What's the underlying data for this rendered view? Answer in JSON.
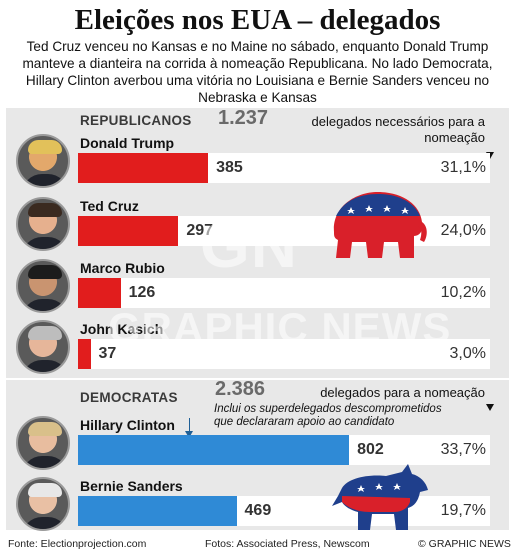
{
  "title": "Eleições nos EUA – delegados",
  "subtitle": "Ted Cruz venceu no Kansas e no Maine no sábado, enquanto Donald Trump manteve a dianteira na corrida à nomeação Republicana. No lado Democrata, Hillary Clinton averbou uma vitória no Louisiana e Bernie Sanders venceu no Nebraska e Kansas",
  "republican": {
    "label": "REPUBLICANOS",
    "threshold_value": "1.237",
    "threshold_text": "delegados necessários para a nomeação",
    "candidates": [
      {
        "name": "Donald Trump",
        "delegates": 385,
        "delegates_label": "385",
        "pct": "31,1%"
      },
      {
        "name": "Ted Cruz",
        "delegates": 297,
        "delegates_label": "297",
        "pct": "24,0%"
      },
      {
        "name": "Marco Rubio",
        "delegates": 126,
        "delegates_label": "126",
        "pct": "10,2%"
      },
      {
        "name": "John Kasich",
        "delegates": 37,
        "delegates_label": "37",
        "pct": "3,0%"
      }
    ]
  },
  "democrat": {
    "label": "DEMOCRATAS",
    "threshold_value": "2.386",
    "threshold_text": "delegados para a nomeação",
    "note": "Inclui os superdelegados descomprometidos que declararam apoio ao candidato",
    "candidates": [
      {
        "name": "Hillary Clinton",
        "delegates": 802,
        "delegates_label": "802",
        "pct": "33,7%"
      },
      {
        "name": "Bernie Sanders",
        "delegates": 469,
        "delegates_label": "469",
        "pct": "19,7%"
      }
    ]
  },
  "watermark": {
    "logo": "GN",
    "text": "GRAPHIC NEWS"
  },
  "footer": {
    "source": "Fonte: Electionprojection.com",
    "photos": "Fotos: Associated Press, Newscom",
    "credit": "© GRAPHIC NEWS"
  },
  "colors": {
    "republican": "#e11d1d",
    "democrat": "#2f8ad6",
    "panel": "#e8e8e8"
  },
  "icons": {
    "republican": "elephant-icon",
    "democrat": "donkey-icon"
  },
  "chart_data": [
    {
      "type": "bar",
      "categories": [
        "Donald Trump",
        "Ted Cruz",
        "Marco Rubio",
        "John Kasich"
      ],
      "values": [
        385,
        297,
        126,
        37
      ],
      "percent_labels": [
        "31,1%",
        "24,0%",
        "10,2%",
        "3,0%"
      ],
      "threshold": 1237,
      "orientation": "horizontal"
    },
    {
      "type": "bar",
      "categories": [
        "Hillary Clinton",
        "Bernie Sanders"
      ],
      "values": [
        802,
        469
      ],
      "percent_labels": [
        "33,7%",
        "19,7%"
      ],
      "threshold": 2386,
      "orientation": "horizontal"
    }
  ]
}
